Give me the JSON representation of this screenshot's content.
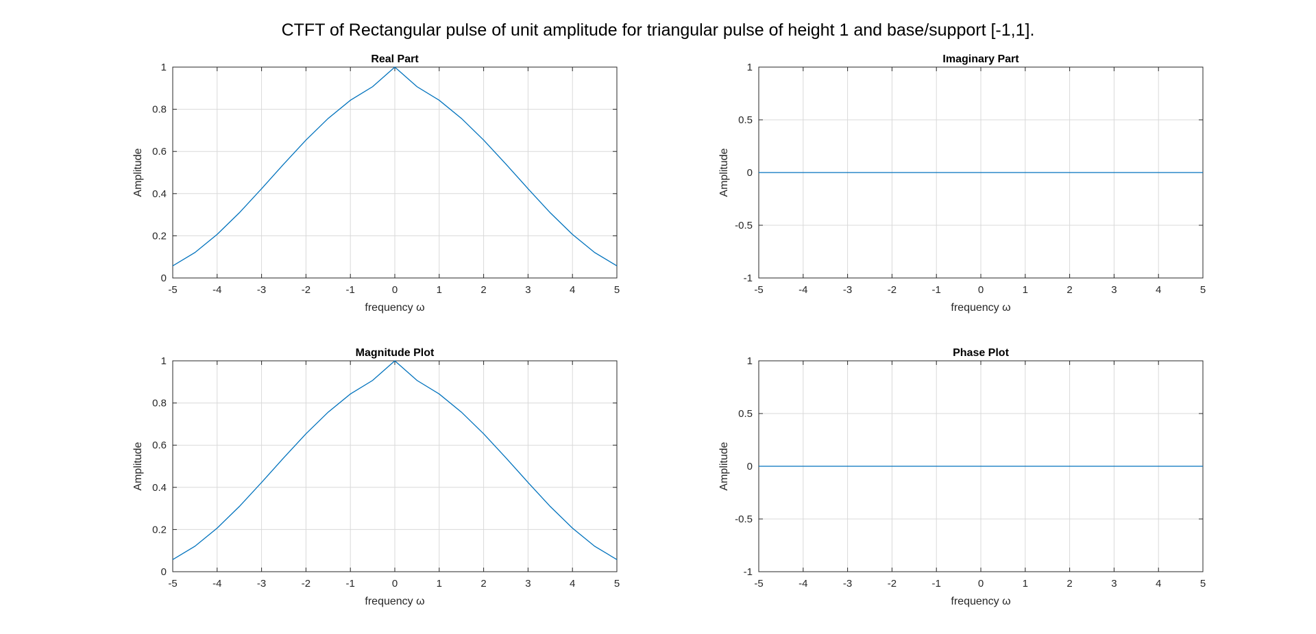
{
  "figure": {
    "title": "CTFT of Rectangular pulse of unit amplitude for triangular pulse of height 1 and base/support [-1,1].",
    "line_color": "#0072BD"
  },
  "chart_data": [
    {
      "type": "line",
      "title": "Real Part",
      "xlabel": "frequency ω",
      "ylabel": "Amplitude",
      "xlim": [
        -5,
        5
      ],
      "ylim": [
        0,
        1
      ],
      "xticks": [
        "-5",
        "-4",
        "-3",
        "-2",
        "-1",
        "0",
        "1",
        "2",
        "3",
        "4",
        "5"
      ],
      "yticks": [
        "0",
        "0.2",
        "0.4",
        "0.6",
        "0.8",
        "1"
      ],
      "grid": true,
      "series": [
        {
          "x": [
            -5,
            -4.5,
            -4,
            -3.5,
            -3,
            -2.5,
            -2,
            -1.5,
            -1,
            -0.5,
            0,
            0.5,
            1,
            1.5,
            2,
            2.5,
            3,
            3.5,
            4,
            4.5,
            5
          ],
          "y": [
            0.0574,
            0.1207,
            0.2067,
            0.3092,
            0.4232,
            0.5405,
            0.654,
            0.7566,
            0.8427,
            0.907,
            1.0,
            0.907,
            0.8427,
            0.7566,
            0.654,
            0.5405,
            0.4232,
            0.3092,
            0.2067,
            0.1207,
            0.0574
          ]
        }
      ]
    },
    {
      "type": "line",
      "title": "Imaginary Part",
      "xlabel": "frequency ω",
      "ylabel": "Amplitude",
      "xlim": [
        -5,
        5
      ],
      "ylim": [
        -1,
        1
      ],
      "xticks": [
        "-5",
        "-4",
        "-3",
        "-2",
        "-1",
        "0",
        "1",
        "2",
        "3",
        "4",
        "5"
      ],
      "yticks": [
        "-1",
        "-0.5",
        "0",
        "0.5",
        "1"
      ],
      "grid": true,
      "series": [
        {
          "x": [
            -5,
            5
          ],
          "y": [
            0,
            0
          ]
        }
      ]
    },
    {
      "type": "line",
      "title": "Magnitude Plot",
      "xlabel": "frequency ω",
      "ylabel": "Amplitude",
      "xlim": [
        -5,
        5
      ],
      "ylim": [
        0,
        1
      ],
      "xticks": [
        "-5",
        "-4",
        "-3",
        "-2",
        "-1",
        "0",
        "1",
        "2",
        "3",
        "4",
        "5"
      ],
      "yticks": [
        "0",
        "0.2",
        "0.4",
        "0.6",
        "0.8",
        "1"
      ],
      "grid": true,
      "series": [
        {
          "x": [
            -5,
            -4.5,
            -4,
            -3.5,
            -3,
            -2.5,
            -2,
            -1.5,
            -1,
            -0.5,
            0,
            0.5,
            1,
            1.5,
            2,
            2.5,
            3,
            3.5,
            4,
            4.5,
            5
          ],
          "y": [
            0.0574,
            0.1207,
            0.2067,
            0.3092,
            0.4232,
            0.5405,
            0.654,
            0.7566,
            0.8427,
            0.907,
            1.0,
            0.907,
            0.8427,
            0.7566,
            0.654,
            0.5405,
            0.4232,
            0.3092,
            0.2067,
            0.1207,
            0.0574
          ]
        }
      ]
    },
    {
      "type": "line",
      "title": "Phase Plot",
      "xlabel": "frequency ω",
      "ylabel": "Amplitude",
      "xlim": [
        -5,
        5
      ],
      "ylim": [
        -1,
        1
      ],
      "xticks": [
        "-5",
        "-4",
        "-3",
        "-2",
        "-1",
        "0",
        "1",
        "2",
        "3",
        "4",
        "5"
      ],
      "yticks": [
        "-1",
        "-0.5",
        "0",
        "0.5",
        "1"
      ],
      "grid": true,
      "series": [
        {
          "x": [
            -5,
            5
          ],
          "y": [
            0,
            0
          ]
        }
      ]
    }
  ]
}
